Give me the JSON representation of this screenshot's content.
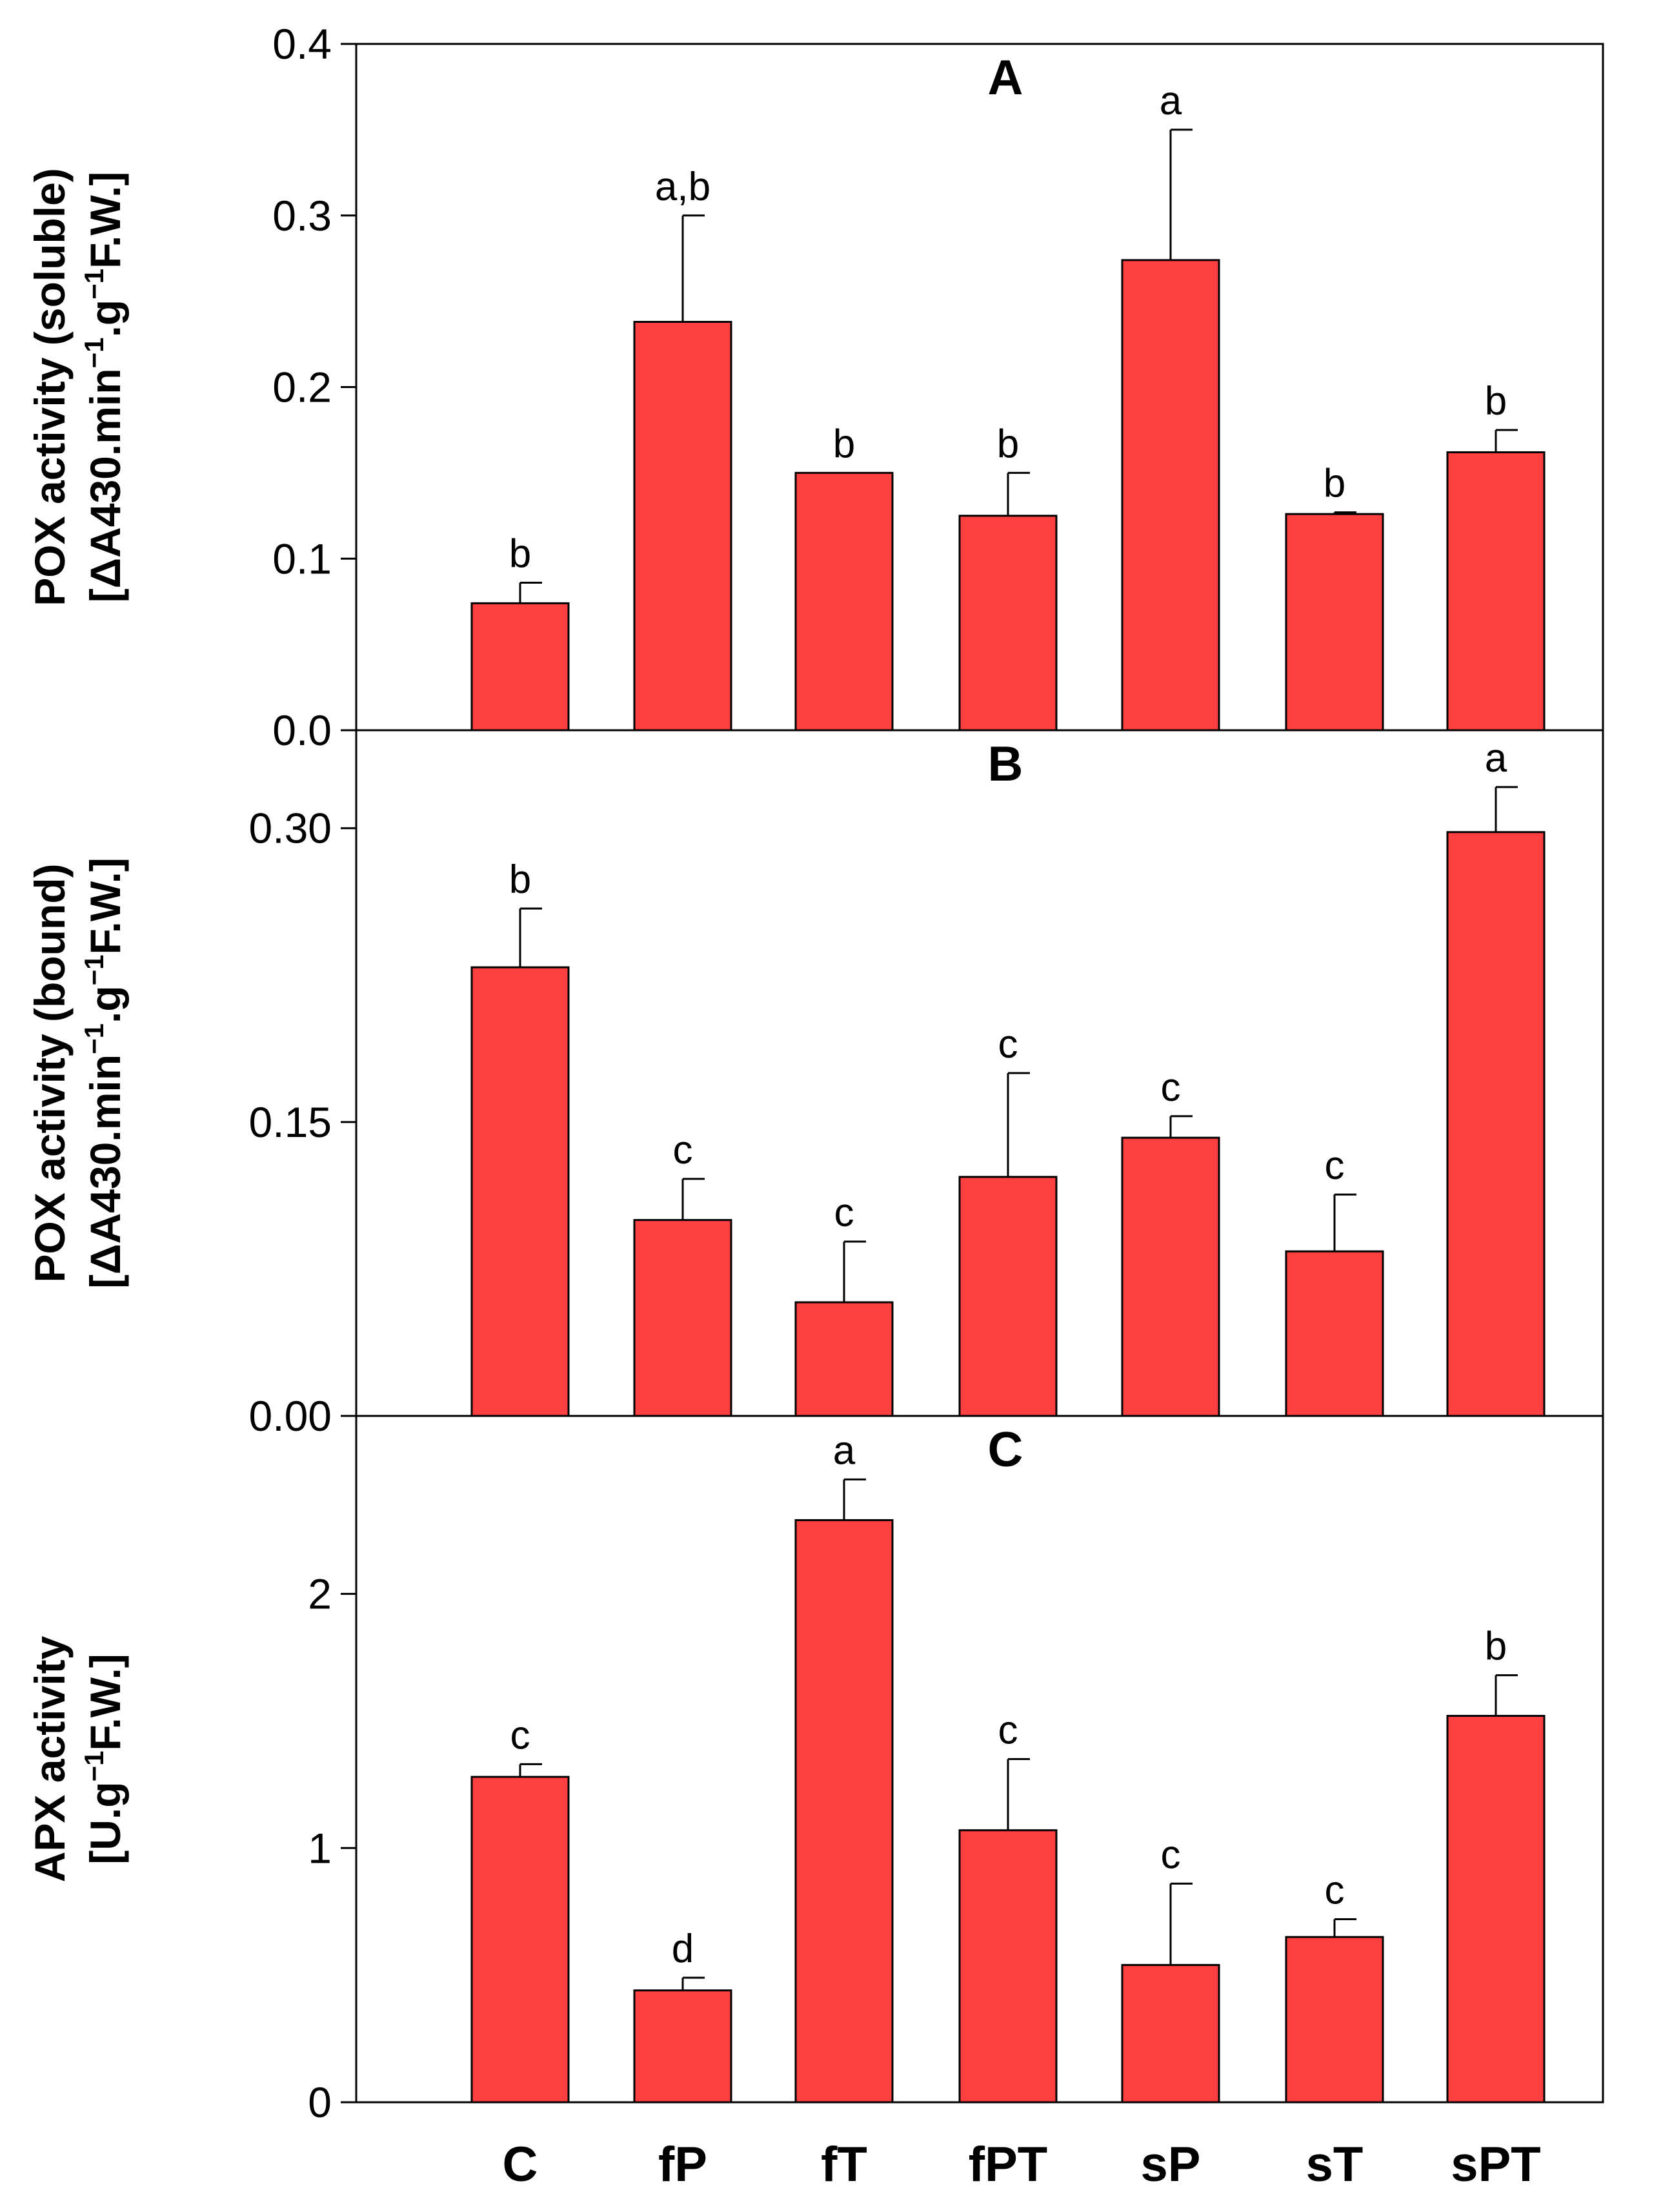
{
  "chart_data": [
    {
      "type": "bar",
      "panel": "A",
      "title": "A",
      "categories": [
        "C",
        "fP",
        "fT",
        "fPT",
        "sP",
        "sT",
        "sPT"
      ],
      "values": [
        0.074,
        0.238,
        0.15,
        0.125,
        0.274,
        0.126,
        0.162
      ],
      "errors": [
        0.012,
        0.062,
        0.0,
        0.025,
        0.076,
        0.001,
        0.013
      ],
      "letters": [
        "b",
        "a,b",
        "b",
        "b",
        "a",
        "b",
        "b"
      ],
      "ylabel_line1": "POX activity (soluble)",
      "ylabel_line2": {
        "pre": "[ΔA430.min",
        "sup1": "−1",
        "mid": ".g",
        "sup2": "−1",
        "post": "F.W.]"
      },
      "ylim": [
        0,
        0.4
      ],
      "yticks": [
        "0.0",
        "0.1",
        "0.2",
        "0.3",
        "0.4"
      ],
      "ytick_values": [
        0.0,
        0.1,
        0.2,
        0.3,
        0.4
      ],
      "bar_color": "#ff4040"
    },
    {
      "type": "bar",
      "panel": "B",
      "title": "B",
      "categories": [
        "C",
        "fP",
        "fT",
        "fPT",
        "sP",
        "sT",
        "sPT"
      ],
      "values": [
        0.229,
        0.1,
        0.058,
        0.122,
        0.142,
        0.084,
        0.298
      ],
      "errors": [
        0.03,
        0.021,
        0.031,
        0.053,
        0.011,
        0.029,
        0.023
      ],
      "letters": [
        "b",
        "c",
        "c",
        "c",
        "c",
        "c",
        "a"
      ],
      "ylabel_line1": "POX activity (bound)",
      "ylabel_line2": {
        "pre": "[ΔA430.min",
        "sup1": "−1",
        "mid": ".g",
        "sup2": "−1",
        "post": "F.W.]"
      },
      "ylim": [
        0,
        0.35
      ],
      "yticks": [
        "0.00",
        "0.15",
        "0.30"
      ],
      "ytick_values": [
        0.0,
        0.15,
        0.3
      ],
      "bar_color": "#ff4040"
    },
    {
      "type": "bar",
      "panel": "C",
      "title": "C",
      "categories": [
        "C",
        "fP",
        "fT",
        "fPT",
        "sP",
        "sT",
        "sPT"
      ],
      "values": [
        1.28,
        0.44,
        2.29,
        1.07,
        0.54,
        0.65,
        1.52
      ],
      "errors": [
        0.05,
        0.05,
        0.16,
        0.28,
        0.32,
        0.07,
        0.16
      ],
      "letters": [
        "c",
        "d",
        "a",
        "c",
        "c",
        "c",
        "b"
      ],
      "ylabel_line1": "APX activity",
      "ylabel_line2": {
        "pre": "[U.g",
        "sup1": "−1",
        "mid": "F.W.]",
        "sup2": "",
        "post": ""
      },
      "ylim": [
        0,
        2.7
      ],
      "yticks": [
        "0",
        "1",
        "2"
      ],
      "ytick_values": [
        0,
        1,
        2
      ],
      "bar_color": "#ff4040"
    }
  ],
  "x_categories": [
    "C",
    "fP",
    "fT",
    "fPT",
    "sP",
    "sT",
    "sPT"
  ]
}
